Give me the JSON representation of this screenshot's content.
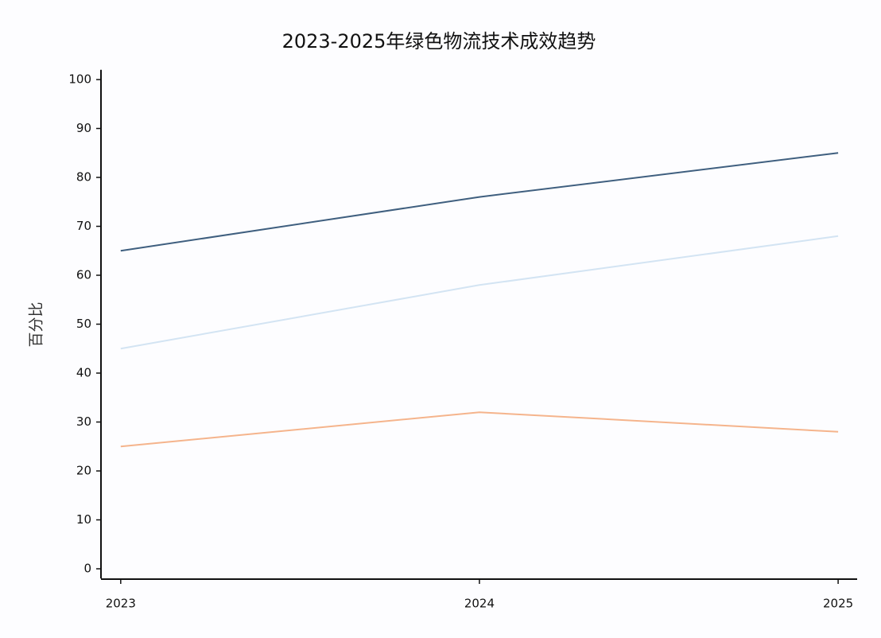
{
  "chart_data": {
    "type": "line",
    "title": "2023-2025年绿色物流技术成效趋势",
    "y_label": "百分比",
    "x": [
      2023,
      2024,
      2025
    ],
    "series": [
      {
        "color": "#3f5f7f",
        "values": [
          65,
          76,
          85
        ]
      },
      {
        "color": "#d3e4f3",
        "values": [
          45,
          58,
          68
        ]
      },
      {
        "color": "#f5b48c",
        "values": [
          25,
          32,
          28
        ]
      }
    ],
    "xlim": [
      2022.945,
      2025.053
    ],
    "xticks": [
      2023,
      2024,
      2025
    ],
    "ylim": [
      -2,
      102
    ],
    "yticks": [
      0,
      10,
      20,
      30,
      40,
      50,
      60,
      70,
      80,
      90,
      100
    ]
  }
}
